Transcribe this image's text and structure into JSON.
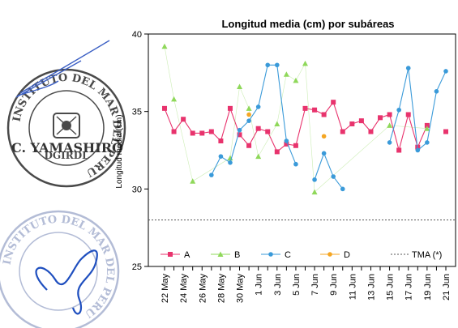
{
  "stamp_top": {
    "ring_text": "INSTITUTO DEL MAR DEL PERU",
    "inner_text": "DGIRDL",
    "name": "C. YAMASHIRO",
    "color": "#4a4a4a",
    "signature_color": "#3b5fc4"
  },
  "stamp_bottom": {
    "ring_text": "INSTITUTO DEL MAR DEL PERU",
    "color": "#9aa6c9",
    "signature_color": "#1f4fbf"
  },
  "chart_data": {
    "type": "line",
    "title": "Longitud media (cm) por subáreas",
    "xlabel": "",
    "ylabel": "Longitud media (cm)",
    "ylim": [
      25,
      40
    ],
    "yticks": [
      25,
      30,
      35,
      40
    ],
    "x": [
      "22 May",
      "23 May",
      "24 May",
      "25 May",
      "26 May",
      "27 May",
      "28 May",
      "29 May",
      "30 May",
      "31 May",
      "1 Jun",
      "2 Jun",
      "3 Jun",
      "4 Jun",
      "5 Jun",
      "6 Jun",
      "7 Jun",
      "8 Jun",
      "9 Jun",
      "10 Jun",
      "11 Jun",
      "12 Jun",
      "13 Jun",
      "14 Jun",
      "15 Jun",
      "16 Jun",
      "17 Jun",
      "18 Jun",
      "19 Jun",
      "20 Jun",
      "21 Jun"
    ],
    "xtick_labels": [
      "22 May",
      "24 May",
      "26 May",
      "28 May",
      "30 May",
      "1 Jun",
      "3 Jun",
      "5 Jun",
      "7 Jun",
      "9 Jun",
      "11 Jun",
      "13 Jun",
      "15 Jun",
      "17 Jun",
      "19 Jun",
      "21 Jun"
    ],
    "series": [
      {
        "name": "A",
        "color": "#e8336d",
        "marker": "square",
        "values": [
          35.2,
          33.7,
          34.5,
          33.6,
          33.6,
          33.7,
          33.1,
          35.2,
          33.5,
          32.8,
          33.9,
          33.7,
          32.4,
          32.9,
          32.8,
          35.2,
          35.1,
          34.8,
          35.6,
          33.7,
          34.2,
          34.4,
          33.7,
          34.6,
          34.8,
          32.5,
          34.8,
          32.7,
          34.1,
          null,
          33.7
        ]
      },
      {
        "name": "B",
        "color": "#8fd85a",
        "marker": "triangle",
        "values": [
          39.2,
          35.8,
          null,
          30.5,
          null,
          null,
          null,
          32.0,
          36.6,
          35.2,
          32.1,
          null,
          34.2,
          37.4,
          37.0,
          38.1,
          29.8,
          null,
          null,
          null,
          null,
          null,
          null,
          null,
          34.1,
          null,
          null,
          null,
          33.9,
          null,
          null
        ]
      },
      {
        "name": "C",
        "color": "#3a9ad9",
        "marker": "circle",
        "values": [
          null,
          null,
          null,
          null,
          null,
          30.9,
          32.1,
          31.7,
          33.8,
          34.4,
          35.3,
          38.0,
          38.0,
          33.1,
          31.6,
          null,
          30.6,
          32.3,
          30.8,
          30.0,
          null,
          null,
          null,
          null,
          33.0,
          35.1,
          37.8,
          32.5,
          33.0,
          36.3,
          37.6
        ]
      },
      {
        "name": "D",
        "color": "#f5a623",
        "marker": "circle",
        "values": [
          null,
          null,
          null,
          null,
          null,
          null,
          null,
          null,
          null,
          34.8,
          null,
          null,
          null,
          null,
          null,
          null,
          null,
          33.4,
          null,
          null,
          null,
          null,
          null,
          null,
          null,
          null,
          null,
          null,
          null,
          null,
          null
        ]
      }
    ],
    "reference_lines": [
      {
        "name": "TMA (*)",
        "value": 28,
        "color": "#555555",
        "style": "dotted"
      }
    ],
    "legend": {
      "placement": "bottom-inside",
      "entries": [
        "A",
        "B",
        "C",
        "D",
        "TMA (*)"
      ]
    },
    "grid": false
  }
}
